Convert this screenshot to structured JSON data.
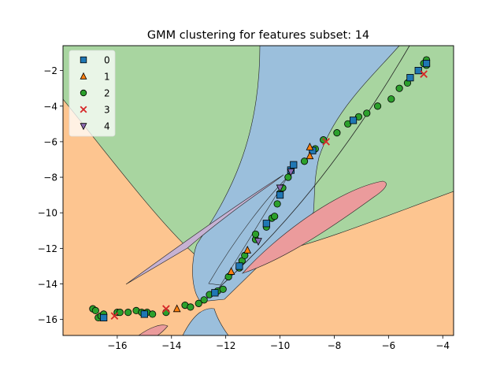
{
  "chart_data": {
    "type": "scatter",
    "title": "GMM clustering for features subset: 14",
    "xlabel": "",
    "ylabel": "",
    "xlim": [
      -18,
      -3.6
    ],
    "ylim": [
      -16.9,
      -0.6
    ],
    "xticks": [
      -16,
      -14,
      -12,
      -10,
      -8,
      -6,
      -4
    ],
    "yticks": [
      -16,
      -14,
      -12,
      -10,
      -8,
      -6,
      -4,
      -2
    ],
    "grid": false,
    "legend_position": "top-left",
    "region_colors": {
      "0": "#9bbfdc",
      "1": "#fdc590",
      "2": "#a8d5a0",
      "3": "#eb9b9c",
      "4": "#c6b2d3"
    },
    "series": [
      {
        "name": "0",
        "marker": "square",
        "color": "#1f77b4",
        "points": [
          [
            -16.5,
            -15.9
          ],
          [
            -15.0,
            -15.7
          ],
          [
            -12.4,
            -14.5
          ],
          [
            -11.5,
            -13.0
          ],
          [
            -10.5,
            -10.6
          ],
          [
            -10.0,
            -9.0
          ],
          [
            -9.6,
            -7.6
          ],
          [
            -9.5,
            -7.3
          ],
          [
            -8.8,
            -6.5
          ],
          [
            -7.3,
            -4.8
          ],
          [
            -5.2,
            -2.4
          ],
          [
            -4.9,
            -2.0
          ],
          [
            -4.6,
            -1.6
          ]
        ]
      },
      {
        "name": "1",
        "marker": "triangle-up",
        "color": "#ff7f0e",
        "points": [
          [
            -13.8,
            -15.4
          ],
          [
            -11.8,
            -13.3
          ],
          [
            -11.2,
            -12.1
          ],
          [
            -8.9,
            -6.8
          ],
          [
            -8.9,
            -6.3
          ]
        ]
      },
      {
        "name": "2",
        "marker": "circle",
        "color": "#2ca02c",
        "points": [
          [
            -16.9,
            -15.4
          ],
          [
            -16.8,
            -15.5
          ],
          [
            -16.7,
            -15.9
          ],
          [
            -16.6,
            -15.8
          ],
          [
            -16.5,
            -15.7
          ],
          [
            -16.0,
            -15.6
          ],
          [
            -15.9,
            -15.6
          ],
          [
            -15.6,
            -15.6
          ],
          [
            -15.3,
            -15.5
          ],
          [
            -15.1,
            -15.6
          ],
          [
            -14.9,
            -15.6
          ],
          [
            -14.7,
            -15.7
          ],
          [
            -14.2,
            -15.6
          ],
          [
            -13.5,
            -15.2
          ],
          [
            -13.3,
            -15.3
          ],
          [
            -13.0,
            -15.1
          ],
          [
            -12.8,
            -14.9
          ],
          [
            -12.6,
            -14.6
          ],
          [
            -12.3,
            -14.4
          ],
          [
            -12.1,
            -14.3
          ],
          [
            -11.9,
            -13.6
          ],
          [
            -11.5,
            -13.1
          ],
          [
            -11.4,
            -12.7
          ],
          [
            -11.3,
            -12.4
          ],
          [
            -10.9,
            -11.5
          ],
          [
            -10.9,
            -11.2
          ],
          [
            -10.5,
            -10.8
          ],
          [
            -10.3,
            -10.3
          ],
          [
            -10.2,
            -10.2
          ],
          [
            -10.1,
            -9.5
          ],
          [
            -10.0,
            -8.9
          ],
          [
            -9.9,
            -8.6
          ],
          [
            -9.7,
            -8.0
          ],
          [
            -9.1,
            -7.1
          ],
          [
            -8.7,
            -6.4
          ],
          [
            -8.4,
            -5.9
          ],
          [
            -7.9,
            -5.5
          ],
          [
            -7.5,
            -5.0
          ],
          [
            -7.1,
            -4.6
          ],
          [
            -6.8,
            -4.4
          ],
          [
            -6.4,
            -4.0
          ],
          [
            -5.9,
            -3.6
          ],
          [
            -5.6,
            -3.0
          ],
          [
            -5.3,
            -2.7
          ],
          [
            -4.7,
            -1.6
          ],
          [
            -4.6,
            -1.7
          ],
          [
            -4.6,
            -1.4
          ]
        ]
      },
      {
        "name": "3",
        "marker": "x",
        "color": "#d62728",
        "points": [
          [
            -16.1,
            -15.8
          ],
          [
            -14.2,
            -15.4
          ],
          [
            -8.3,
            -6.0
          ],
          [
            -4.7,
            -2.2
          ]
        ]
      },
      {
        "name": "4",
        "marker": "triangle-down",
        "color": "#8c6bb1",
        "points": [
          [
            -10.0,
            -8.6
          ],
          [
            -9.6,
            -7.7
          ],
          [
            -10.8,
            -11.6
          ]
        ]
      }
    ]
  }
}
